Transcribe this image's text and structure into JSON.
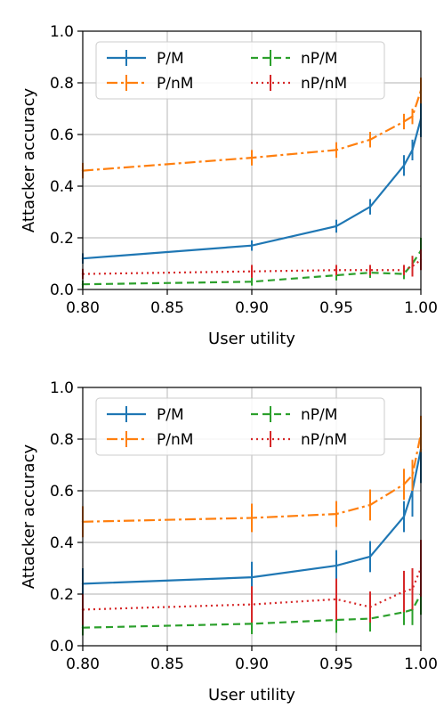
{
  "chart_data": [
    {
      "type": "line",
      "xlabel": "User utility",
      "ylabel": "Attacker accuracy",
      "xlim": [
        0.8,
        1.0
      ],
      "ylim": [
        0.0,
        1.0
      ],
      "xticks": [
        "0.80",
        "0.85",
        "0.90",
        "0.95",
        "1.00"
      ],
      "yticks": [
        "0.0",
        "0.2",
        "0.4",
        "0.6",
        "0.8",
        "1.0"
      ],
      "grid": true,
      "legend_position": "top",
      "x": [
        0.8,
        0.9,
        0.95,
        0.97,
        0.99,
        0.995,
        1.0
      ],
      "series": [
        {
          "name": "P/M",
          "style": "solid",
          "color": "#1f77b4",
          "values": [
            0.12,
            0.17,
            0.245,
            0.32,
            0.48,
            0.54,
            0.66
          ],
          "errors": [
            0.02,
            0.02,
            0.025,
            0.03,
            0.04,
            0.04,
            0.07
          ]
        },
        {
          "name": "P/nM",
          "style": "dashdot",
          "color": "#ff7f0e",
          "values": [
            0.46,
            0.51,
            0.54,
            0.58,
            0.65,
            0.67,
            0.77
          ],
          "errors": [
            0.03,
            0.03,
            0.03,
            0.03,
            0.03,
            0.03,
            0.05
          ]
        },
        {
          "name": "nP/M",
          "style": "dashed",
          "color": "#2ca02c",
          "values": [
            0.02,
            0.03,
            0.055,
            0.065,
            0.06,
            0.1,
            0.15
          ],
          "errors": [
            0.015,
            0.015,
            0.02,
            0.02,
            0.02,
            0.03,
            0.05
          ]
        },
        {
          "name": "nP/nM",
          "style": "dotted",
          "color": "#d62728",
          "values": [
            0.06,
            0.07,
            0.075,
            0.075,
            0.075,
            0.09,
            0.115
          ],
          "errors": [
            0.02,
            0.025,
            0.02,
            0.02,
            0.02,
            0.04,
            0.04
          ]
        }
      ]
    },
    {
      "type": "line",
      "xlabel": "User utility",
      "ylabel": "Attacker accuracy",
      "xlim": [
        0.8,
        1.0
      ],
      "ylim": [
        0.0,
        1.0
      ],
      "xticks": [
        "0.80",
        "0.85",
        "0.90",
        "0.95",
        "1.00"
      ],
      "yticks": [
        "0.0",
        "0.2",
        "0.4",
        "0.6",
        "0.8",
        "1.0"
      ],
      "grid": true,
      "legend_position": "top",
      "x": [
        0.8,
        0.9,
        0.95,
        0.97,
        0.99,
        0.995,
        1.0
      ],
      "series": [
        {
          "name": "P/M",
          "style": "solid",
          "color": "#1f77b4",
          "values": [
            0.24,
            0.265,
            0.31,
            0.345,
            0.5,
            0.6,
            0.76
          ],
          "errors": [
            0.06,
            0.06,
            0.06,
            0.06,
            0.06,
            0.1,
            0.13
          ]
        },
        {
          "name": "P/nM",
          "style": "dashdot",
          "color": "#ff7f0e",
          "values": [
            0.48,
            0.495,
            0.51,
            0.545,
            0.625,
            0.66,
            0.82
          ],
          "errors": [
            0.06,
            0.055,
            0.05,
            0.06,
            0.06,
            0.06,
            0.07
          ]
        },
        {
          "name": "nP/M",
          "style": "dashed",
          "color": "#2ca02c",
          "values": [
            0.07,
            0.085,
            0.1,
            0.105,
            0.13,
            0.14,
            0.2
          ],
          "errors": [
            0.03,
            0.04,
            0.05,
            0.05,
            0.05,
            0.06,
            0.08
          ]
        },
        {
          "name": "nP/nM",
          "style": "dotted",
          "color": "#d62728",
          "values": [
            0.14,
            0.16,
            0.18,
            0.15,
            0.21,
            0.22,
            0.3
          ],
          "errors": [
            0.06,
            0.07,
            0.08,
            0.06,
            0.08,
            0.08,
            0.11
          ]
        }
      ]
    }
  ]
}
